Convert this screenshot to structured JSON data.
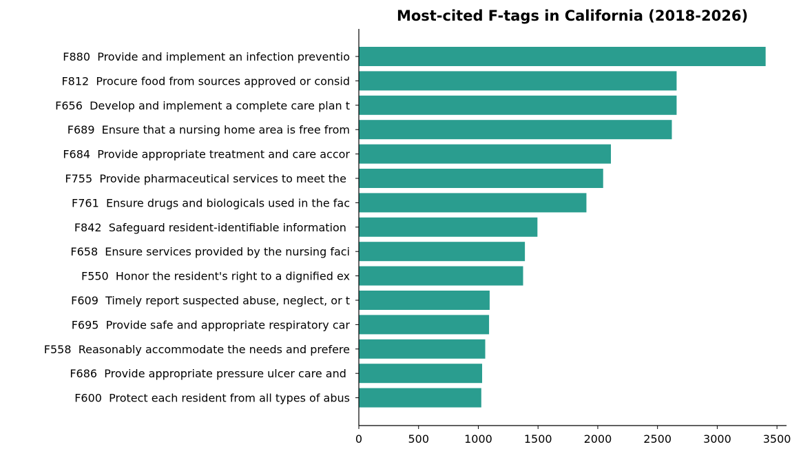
{
  "chart_data": {
    "type": "bar",
    "orientation": "horizontal",
    "title": "Most-cited F-tags in California (2018-2026)",
    "xlabel": "",
    "ylabel": "",
    "xlim": [
      0,
      3580
    ],
    "xticks": [
      0,
      500,
      1000,
      1500,
      2000,
      2500,
      3000,
      3500
    ],
    "grid": false,
    "bar_color": "#2a9d8f",
    "categories": [
      "F880  Provide and implement an infection preventio",
      "F812  Procure food from sources approved or consid",
      "F656  Develop and implement a complete care plan t",
      "F689  Ensure that a nursing home area is free from",
      "F684  Provide appropriate treatment and care accor",
      "F755  Provide pharmaceutical services to meet the ",
      "F761  Ensure drugs and biologicals used in the fac",
      "F842  Safeguard resident-identifiable information ",
      "F658  Ensure services provided by the nursing faci",
      "F550  Honor the resident's right to a dignified ex",
      "F609  Timely report suspected abuse, neglect, or t",
      "F695  Provide safe and appropriate respiratory car",
      "F558  Reasonably accommodate the needs and prefere",
      "F686  Provide appropriate pressure ulcer care and ",
      "F600  Protect each resident from all types of abus"
    ],
    "values": [
      3405,
      2660,
      2660,
      2620,
      2110,
      2045,
      1905,
      1495,
      1390,
      1375,
      1095,
      1090,
      1058,
      1032,
      1025
    ]
  }
}
